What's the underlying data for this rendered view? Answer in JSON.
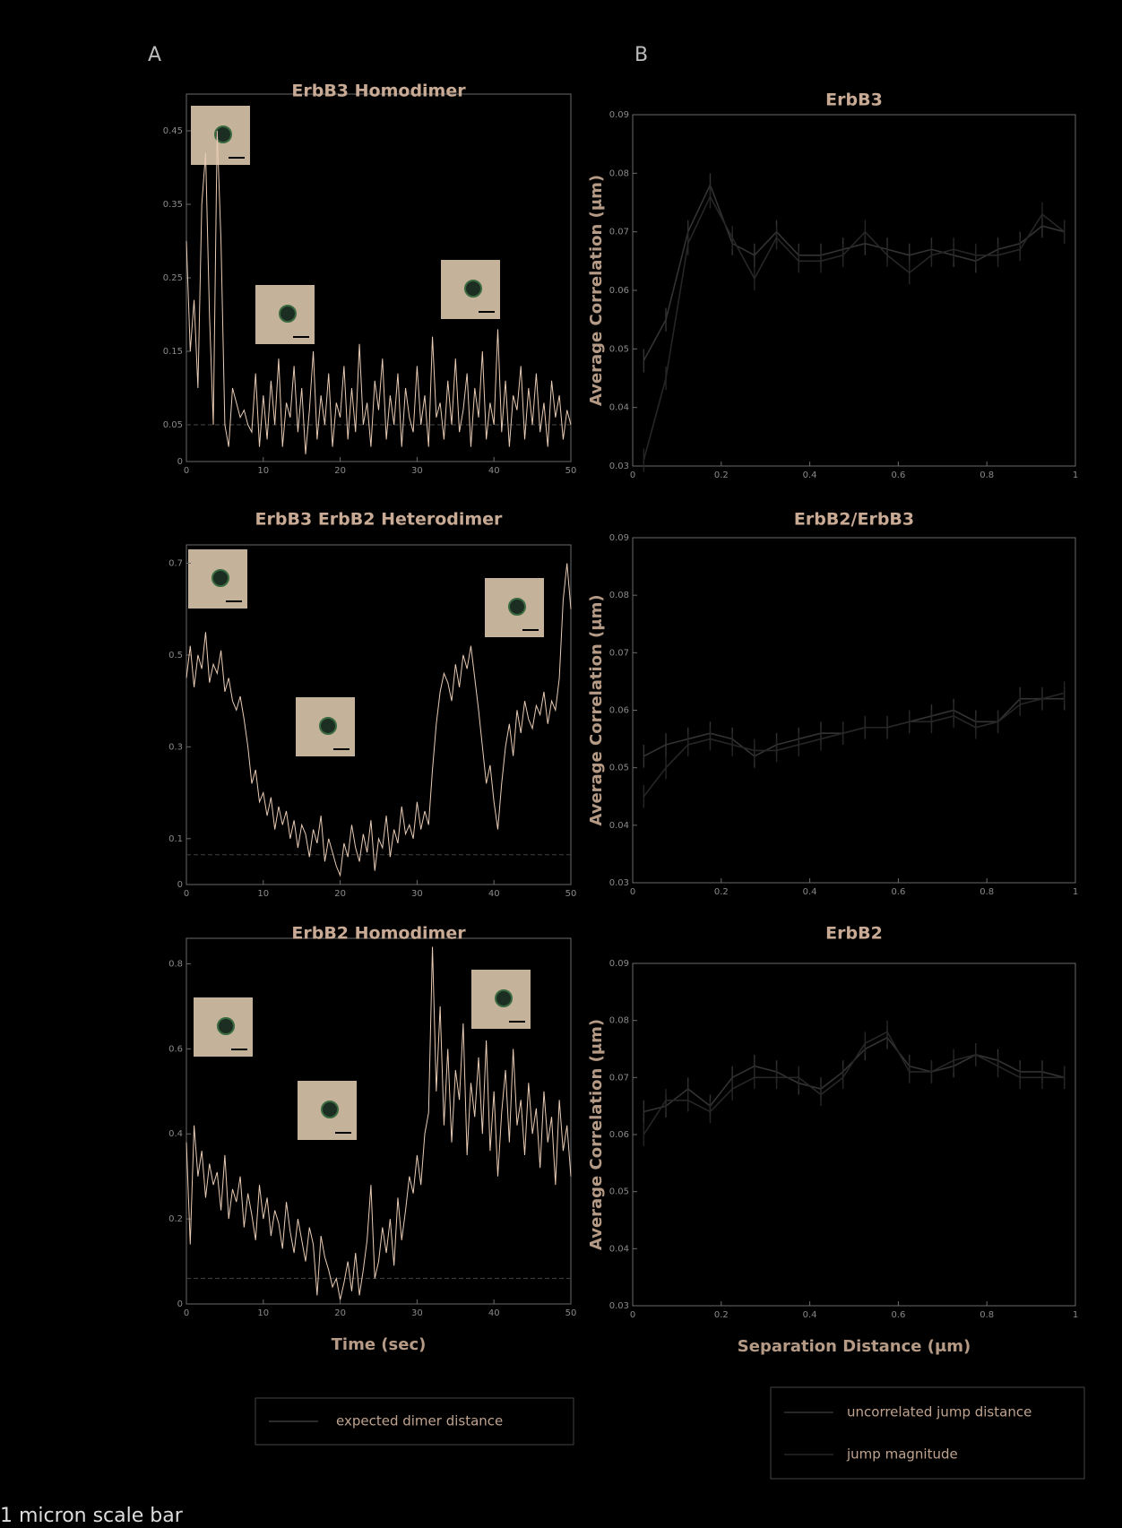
{
  "panel_labels": [
    "A",
    "B"
  ],
  "footnote": "1 micron scale bar",
  "legends": [
    {
      "items": [
        {
          "name": "expected dimer distance",
          "color": "#3a3a3a"
        }
      ]
    },
    {
      "items": [
        {
          "name": "uncorrelated jump distance",
          "color": "#333333"
        },
        {
          "name": "jump magnitude",
          "color": "#262626"
        }
      ]
    }
  ],
  "chart_data": [
    {
      "type": "line",
      "title": "ErbB3 Homodimer",
      "xlim": [
        0,
        50
      ],
      "xticks": [
        0,
        10,
        20,
        30,
        40,
        50
      ],
      "ylim": [
        0,
        0.5
      ],
      "yticks": [
        0,
        0.05,
        0.15,
        0.25,
        0.35,
        0.45
      ],
      "reference": 0.05,
      "reference_color": "#3a3a3a",
      "x": [
        0,
        0.5,
        1,
        1.5,
        2,
        2.5,
        3,
        3.5,
        4,
        4.5,
        5,
        5.5,
        6,
        6.5,
        7,
        7.5,
        8,
        8.5,
        9,
        9.5,
        10,
        10.5,
        11,
        11.5,
        12,
        12.5,
        13,
        13.5,
        14,
        14.5,
        15,
        15.5,
        16,
        16.5,
        17,
        17.5,
        18,
        18.5,
        19,
        19.5,
        20,
        20.5,
        21,
        21.5,
        22,
        22.5,
        23,
        23.5,
        24,
        24.5,
        25,
        25.5,
        26,
        26.5,
        27,
        27.5,
        28,
        28.5,
        29,
        29.5,
        30,
        30.5,
        31,
        31.5,
        32,
        32.5,
        33,
        33.5,
        34,
        34.5,
        35,
        35.5,
        36,
        36.5,
        37,
        37.5,
        38,
        38.5,
        39,
        39.5,
        40,
        40.5,
        41,
        41.5,
        42,
        42.5,
        43,
        43.5,
        44,
        44.5,
        45,
        45.5,
        46,
        46.5,
        47,
        47.5,
        48,
        48.5,
        49,
        49.5,
        50
      ],
      "series": [
        {
          "color": "#e8cbb4",
          "values": [
            0.3,
            0.15,
            0.22,
            0.1,
            0.35,
            0.42,
            0.2,
            0.05,
            0.45,
            0.3,
            0.05,
            0.02,
            0.1,
            0.08,
            0.06,
            0.07,
            0.05,
            0.04,
            0.12,
            0.02,
            0.09,
            0.03,
            0.11,
            0.05,
            0.14,
            0.02,
            0.08,
            0.06,
            0.13,
            0.04,
            0.1,
            0.01,
            0.07,
            0.15,
            0.03,
            0.09,
            0.05,
            0.12,
            0.02,
            0.08,
            0.06,
            0.13,
            0.03,
            0.1,
            0.04,
            0.16,
            0.05,
            0.08,
            0.02,
            0.11,
            0.07,
            0.14,
            0.03,
            0.09,
            0.05,
            0.12,
            0.02,
            0.1,
            0.06,
            0.04,
            0.13,
            0.05,
            0.09,
            0.02,
            0.17,
            0.06,
            0.08,
            0.03,
            0.11,
            0.05,
            0.14,
            0.04,
            0.07,
            0.12,
            0.02,
            0.1,
            0.06,
            0.15,
            0.03,
            0.08,
            0.05,
            0.18,
            0.04,
            0.11,
            0.02,
            0.09,
            0.07,
            0.13,
            0.03,
            0.1,
            0.05,
            0.12,
            0.04,
            0.08,
            0.02,
            0.11,
            0.06,
            0.09,
            0.03,
            0.07,
            0.05
          ]
        }
      ]
    },
    {
      "type": "line",
      "title": "ErbB3 ErbB2 Heterodimer",
      "xlim": [
        0,
        50
      ],
      "xticks": [
        0,
        10,
        20,
        30,
        40,
        50
      ],
      "ylim": [
        0,
        0.74
      ],
      "yticks": [
        0,
        0.1,
        0.3,
        0.5,
        0.7
      ],
      "reference": 0.065,
      "reference_color": "#3a3a3a",
      "x": [
        0,
        0.5,
        1,
        1.5,
        2,
        2.5,
        3,
        3.5,
        4,
        4.5,
        5,
        5.5,
        6,
        6.5,
        7,
        7.5,
        8,
        8.5,
        9,
        9.5,
        10,
        10.5,
        11,
        11.5,
        12,
        12.5,
        13,
        13.5,
        14,
        14.5,
        15,
        15.5,
        16,
        16.5,
        17,
        17.5,
        18,
        18.5,
        19,
        19.5,
        20,
        20.5,
        21,
        21.5,
        22,
        22.5,
        23,
        23.5,
        24,
        24.5,
        25,
        25.5,
        26,
        26.5,
        27,
        27.5,
        28,
        28.5,
        29,
        29.5,
        30,
        30.5,
        31,
        31.5,
        32,
        32.5,
        33,
        33.5,
        34,
        34.5,
        35,
        35.5,
        36,
        36.5,
        37,
        37.5,
        38,
        38.5,
        39,
        39.5,
        40,
        40.5,
        41,
        41.5,
        42,
        42.5,
        43,
        43.5,
        44,
        44.5,
        45,
        45.5,
        46,
        46.5,
        47,
        47.5,
        48,
        48.5,
        49,
        49.5,
        50
      ],
      "series": [
        {
          "color": "#e8cbb4",
          "values": [
            0.45,
            0.52,
            0.43,
            0.5,
            0.47,
            0.55,
            0.44,
            0.48,
            0.46,
            0.51,
            0.42,
            0.45,
            0.4,
            0.38,
            0.41,
            0.36,
            0.3,
            0.22,
            0.25,
            0.18,
            0.2,
            0.15,
            0.19,
            0.12,
            0.17,
            0.13,
            0.16,
            0.1,
            0.14,
            0.08,
            0.13,
            0.11,
            0.06,
            0.12,
            0.09,
            0.15,
            0.05,
            0.1,
            0.07,
            0.04,
            0.02,
            0.09,
            0.06,
            0.13,
            0.08,
            0.05,
            0.11,
            0.07,
            0.14,
            0.03,
            0.1,
            0.08,
            0.15,
            0.06,
            0.12,
            0.09,
            0.17,
            0.11,
            0.13,
            0.1,
            0.18,
            0.12,
            0.16,
            0.13,
            0.25,
            0.35,
            0.42,
            0.46,
            0.44,
            0.4,
            0.48,
            0.43,
            0.5,
            0.47,
            0.52,
            0.45,
            0.38,
            0.3,
            0.22,
            0.26,
            0.18,
            0.12,
            0.22,
            0.3,
            0.35,
            0.28,
            0.38,
            0.33,
            0.4,
            0.36,
            0.34,
            0.39,
            0.37,
            0.42,
            0.35,
            0.4,
            0.38,
            0.45,
            0.62,
            0.7,
            0.6
          ]
        }
      ]
    },
    {
      "type": "line",
      "title": "ErbB2 Homodimer",
      "xlabel": "Time (sec)",
      "xlim": [
        0,
        50
      ],
      "xticks": [
        0,
        10,
        20,
        30,
        40,
        50
      ],
      "ylim": [
        0,
        0.86
      ],
      "yticks": [
        0,
        0.2,
        0.4,
        0.6,
        0.8
      ],
      "reference": 0.06,
      "reference_color": "#3a3a3a",
      "x": [
        0,
        0.5,
        1,
        1.5,
        2,
        2.5,
        3,
        3.5,
        4,
        4.5,
        5,
        5.5,
        6,
        6.5,
        7,
        7.5,
        8,
        8.5,
        9,
        9.5,
        10,
        10.5,
        11,
        11.5,
        12,
        12.5,
        13,
        13.5,
        14,
        14.5,
        15,
        15.5,
        16,
        16.5,
        17,
        17.5,
        18,
        18.5,
        19,
        19.5,
        20,
        20.5,
        21,
        21.5,
        22,
        22.5,
        23,
        23.5,
        24,
        24.5,
        25,
        25.5,
        26,
        26.5,
        27,
        27.5,
        28,
        28.5,
        29,
        29.5,
        30,
        30.5,
        31,
        31.5,
        32,
        32.5,
        33,
        33.5,
        34,
        34.5,
        35,
        35.5,
        36,
        36.5,
        37,
        37.5,
        38,
        38.5,
        39,
        39.5,
        40,
        40.5,
        41,
        41.5,
        42,
        42.5,
        43,
        43.5,
        44,
        44.5,
        45,
        45.5,
        46,
        46.5,
        47,
        47.5,
        48,
        48.5,
        49,
        49.5,
        50
      ],
      "series": [
        {
          "color": "#e8cbb4",
          "values": [
            0.38,
            0.14,
            0.42,
            0.3,
            0.36,
            0.25,
            0.33,
            0.28,
            0.31,
            0.22,
            0.35,
            0.2,
            0.27,
            0.24,
            0.3,
            0.18,
            0.26,
            0.21,
            0.15,
            0.28,
            0.2,
            0.25,
            0.16,
            0.22,
            0.19,
            0.13,
            0.24,
            0.17,
            0.12,
            0.2,
            0.15,
            0.1,
            0.18,
            0.14,
            0.02,
            0.16,
            0.11,
            0.08,
            0.04,
            0.06,
            0.01,
            0.05,
            0.1,
            0.03,
            0.12,
            0.02,
            0.08,
            0.15,
            0.28,
            0.06,
            0.1,
            0.18,
            0.12,
            0.2,
            0.09,
            0.25,
            0.15,
            0.22,
            0.3,
            0.26,
            0.35,
            0.28,
            0.4,
            0.45,
            0.84,
            0.5,
            0.7,
            0.42,
            0.6,
            0.38,
            0.55,
            0.48,
            0.66,
            0.35,
            0.52,
            0.44,
            0.58,
            0.4,
            0.62,
            0.36,
            0.5,
            0.3,
            0.45,
            0.55,
            0.38,
            0.6,
            0.42,
            0.48,
            0.35,
            0.52,
            0.4,
            0.46,
            0.32,
            0.5,
            0.38,
            0.44,
            0.28,
            0.48,
            0.36,
            0.42,
            0.3
          ]
        }
      ]
    },
    {
      "type": "errorline",
      "title": "ErbB3",
      "ylabel": "Average Correlation (μm)",
      "xlim": [
        0,
        1
      ],
      "xticks": [
        0,
        0.2,
        0.4,
        0.6,
        0.8,
        1
      ],
      "ylim": [
        0.03,
        0.09
      ],
      "yticks": [
        0.03,
        0.04,
        0.05,
        0.06,
        0.07,
        0.08,
        0.09
      ],
      "x": [
        0.025,
        0.075,
        0.125,
        0.175,
        0.225,
        0.275,
        0.325,
        0.375,
        0.425,
        0.475,
        0.525,
        0.575,
        0.625,
        0.675,
        0.725,
        0.775,
        0.825,
        0.875,
        0.925,
        0.975
      ],
      "series": [
        {
          "color": "#333333",
          "error": 0.002,
          "values": [
            0.048,
            0.055,
            0.07,
            0.078,
            0.068,
            0.066,
            0.07,
            0.066,
            0.066,
            0.067,
            0.068,
            0.067,
            0.066,
            0.067,
            0.066,
            0.065,
            0.067,
            0.068,
            0.071,
            0.07
          ]
        },
        {
          "color": "#262626",
          "error": 0.002,
          "values": [
            0.031,
            0.045,
            0.068,
            0.076,
            0.069,
            0.062,
            0.069,
            0.065,
            0.065,
            0.066,
            0.07,
            0.066,
            0.063,
            0.066,
            0.067,
            0.066,
            0.066,
            0.067,
            0.073,
            0.07
          ]
        }
      ]
    },
    {
      "type": "errorline",
      "title": "ErbB2/ErbB3",
      "ylabel": "Average Correlation (μm)",
      "xlim": [
        0,
        1
      ],
      "xticks": [
        0,
        0.2,
        0.4,
        0.6,
        0.8,
        1
      ],
      "ylim": [
        0.03,
        0.09
      ],
      "yticks": [
        0.03,
        0.04,
        0.05,
        0.06,
        0.07,
        0.08,
        0.09
      ],
      "x": [
        0.025,
        0.075,
        0.125,
        0.175,
        0.225,
        0.275,
        0.325,
        0.375,
        0.425,
        0.475,
        0.525,
        0.575,
        0.625,
        0.675,
        0.725,
        0.775,
        0.825,
        0.875,
        0.925,
        0.975
      ],
      "series": [
        {
          "color": "#333333",
          "error": 0.002,
          "values": [
            0.052,
            0.054,
            0.055,
            0.056,
            0.055,
            0.052,
            0.054,
            0.055,
            0.056,
            0.056,
            0.057,
            0.057,
            0.058,
            0.059,
            0.06,
            0.058,
            0.058,
            0.062,
            0.062,
            0.062
          ]
        },
        {
          "color": "#262626",
          "error": 0.002,
          "values": [
            0.045,
            0.05,
            0.054,
            0.055,
            0.054,
            0.053,
            0.053,
            0.054,
            0.055,
            0.056,
            0.057,
            0.057,
            0.058,
            0.058,
            0.059,
            0.057,
            0.058,
            0.061,
            0.062,
            0.063
          ]
        }
      ]
    },
    {
      "type": "errorline",
      "title": "ErbB2",
      "ylabel": "Average Correlation (μm)",
      "xlabel": "Separation Distance (μm)",
      "xlim": [
        0,
        1
      ],
      "xticks": [
        0,
        0.2,
        0.4,
        0.6,
        0.8,
        1
      ],
      "ylim": [
        0.03,
        0.09
      ],
      "yticks": [
        0.03,
        0.04,
        0.05,
        0.06,
        0.07,
        0.08,
        0.09
      ],
      "x": [
        0.025,
        0.075,
        0.125,
        0.175,
        0.225,
        0.275,
        0.325,
        0.375,
        0.425,
        0.475,
        0.525,
        0.575,
        0.625,
        0.675,
        0.725,
        0.775,
        0.825,
        0.875,
        0.925,
        0.975
      ],
      "series": [
        {
          "color": "#333333",
          "error": 0.002,
          "values": [
            0.064,
            0.065,
            0.068,
            0.065,
            0.07,
            0.072,
            0.071,
            0.069,
            0.068,
            0.071,
            0.075,
            0.077,
            0.072,
            0.071,
            0.072,
            0.074,
            0.073,
            0.071,
            0.071,
            0.07
          ]
        },
        {
          "color": "#262626",
          "error": 0.002,
          "values": [
            0.06,
            0.066,
            0.066,
            0.064,
            0.068,
            0.07,
            0.07,
            0.07,
            0.067,
            0.07,
            0.076,
            0.078,
            0.071,
            0.071,
            0.073,
            0.074,
            0.072,
            0.07,
            0.07,
            0.07
          ]
        }
      ]
    }
  ]
}
